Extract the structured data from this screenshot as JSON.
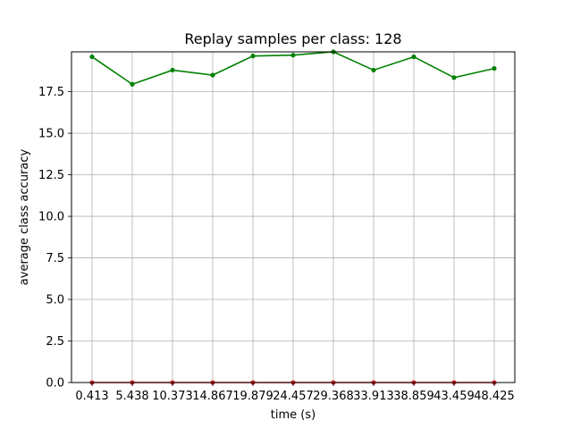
{
  "chart_data": {
    "type": "line",
    "title": "Replay samples per class: 128",
    "xlabel": "time (s)",
    "ylabel": "average class accuracy",
    "categories": [
      "0.413",
      "5.438",
      "10.373",
      "14.867",
      "19.879",
      "24.457",
      "29.368",
      "33.913",
      "38.859",
      "43.459",
      "48.425"
    ],
    "ylim": [
      0,
      19.9
    ],
    "yticks": [
      "0.0",
      "2.5",
      "5.0",
      "7.5",
      "10.0",
      "12.5",
      "15.0",
      "17.5"
    ],
    "grid": true,
    "series": [
      {
        "color": "#008000",
        "values": [
          19.6,
          17.95,
          18.8,
          18.5,
          19.65,
          19.7,
          19.9,
          18.8,
          19.6,
          18.35,
          18.9
        ]
      },
      {
        "color": "#d62728",
        "values": [
          0,
          0,
          0,
          0,
          0,
          0,
          0,
          0,
          0,
          0,
          0
        ]
      }
    ]
  }
}
